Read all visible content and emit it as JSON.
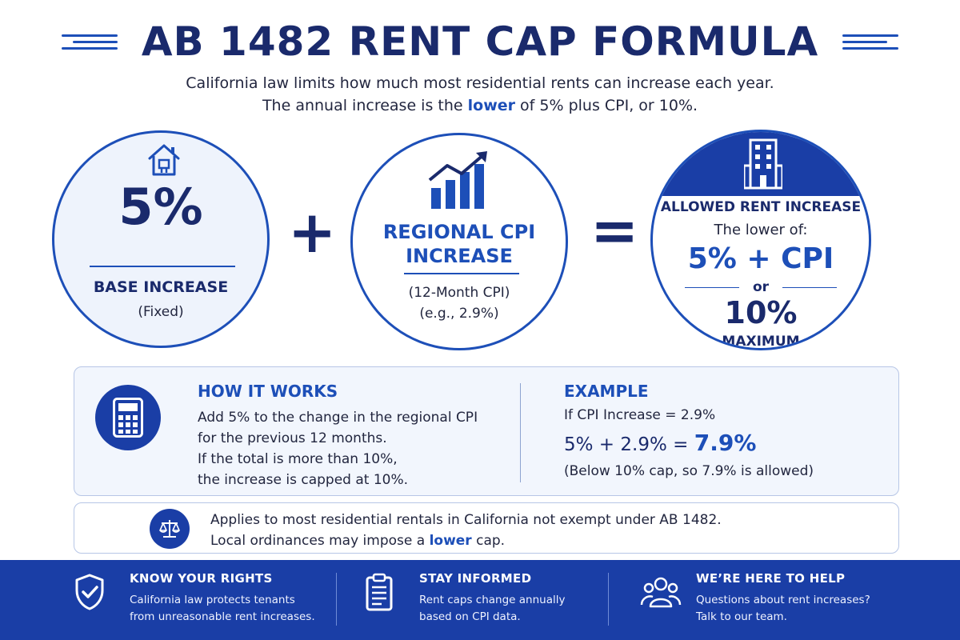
{
  "header": {
    "title": "AB 1482 RENT CAP FORMULA",
    "subtitle_line1": "California law limits how much most residential rents can increase each year.",
    "subtitle_pre": "The annual increase is the ",
    "subtitle_emph": "lower",
    "subtitle_post": " of 5% plus CPI, or 10%."
  },
  "formula": {
    "base": {
      "value": "5%",
      "label": "BASE INCREASE",
      "note": "(Fixed)",
      "icon": "house-icon"
    },
    "plus_symbol": "+",
    "cpi": {
      "label_line1": "REGIONAL CPI",
      "label_line2": "INCREASE",
      "note_line1": "(12-Month CPI)",
      "note_line2": "(e.g., 2.9%)",
      "icon": "rising-chart-icon"
    },
    "equals_symbol": "=",
    "result": {
      "heading": "ALLOWED RENT INCREASE",
      "intro": "The lower of:",
      "option1": "5% + CPI",
      "or": "or",
      "option2": "10%",
      "option2_label": "MAXIMUM",
      "icon": "building-icon"
    }
  },
  "how_it_works": {
    "title": "HOW IT WORKS",
    "line1": "Add 5% to the change in the regional CPI",
    "line2": "for the previous 12 months.",
    "line3": "If the total is more than 10%,",
    "line4": "the increase is capped at 10%.",
    "icon": "calculator-icon"
  },
  "example": {
    "title": "EXAMPLE",
    "line1": "If CPI Increase = 2.9%",
    "calc_pre": "5% + 2.9% = ",
    "calc_result": "7.9%",
    "note": "(Below 10% cap, so 7.9% is allowed)"
  },
  "applies": {
    "line1": "Applies to most residential rentals in California not exempt under AB 1482.",
    "line2_pre": "Local ordinances may impose a ",
    "line2_emph": "lower",
    "line2_post": " cap.",
    "icon": "scales-icon"
  },
  "footer": [
    {
      "title": "KNOW YOUR RIGHTS",
      "line1": "California law protects tenants",
      "line2": "from unreasonable rent increases.",
      "icon": "shield-check-icon"
    },
    {
      "title": "STAY INFORMED",
      "line1": "Rent caps change annually",
      "line2": "based on CPI data.",
      "icon": "clipboard-icon"
    },
    {
      "title": "WE’RE HERE TO HELP",
      "line1": "Questions about rent increases?",
      "line2": "Talk to our team.",
      "icon": "people-icon"
    }
  ],
  "colors": {
    "navy": "#1a2a6c",
    "accent_blue": "#1d4fb8",
    "footer_blue": "#1a3ea6",
    "panel_bg": "#f2f6fd"
  }
}
